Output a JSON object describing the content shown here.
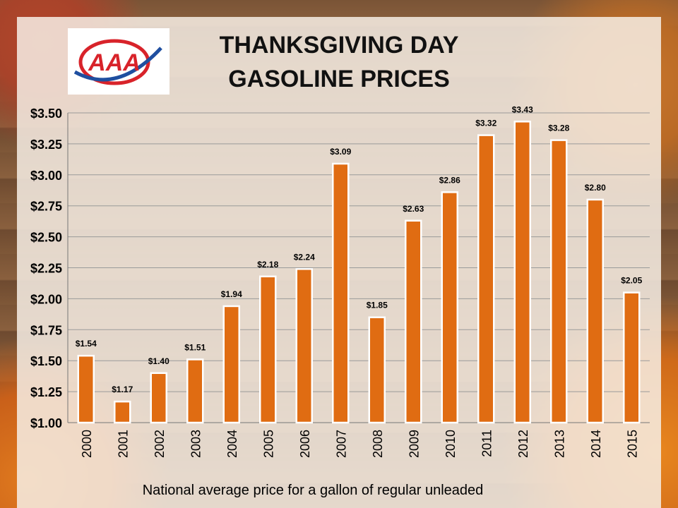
{
  "header": {
    "title_line1": "THANKSGIVING DAY",
    "title_line2": "GASOLINE PRICES",
    "logo_text": "AAA"
  },
  "footer": {
    "caption": "National average price for a gallon of regular unleaded"
  },
  "colors": {
    "bar_fill": "#e06c12",
    "bar_stroke": "#ffffff",
    "grid": "#9a9a9a",
    "logo_red": "#d8232a",
    "logo_blue": "#1f4fa0"
  },
  "chart_data": {
    "type": "bar",
    "categories": [
      "2000",
      "2001",
      "2002",
      "2003",
      "2004",
      "2005",
      "2006",
      "2007",
      "2008",
      "2009",
      "2010",
      "2011",
      "2012",
      "2013",
      "2014",
      "2015"
    ],
    "values": [
      1.54,
      1.17,
      1.4,
      1.51,
      1.94,
      2.18,
      2.24,
      3.09,
      1.85,
      2.63,
      2.86,
      3.32,
      3.43,
      3.28,
      2.8,
      2.05
    ],
    "data_labels": [
      "$1.54",
      "$1.17",
      "$1.40",
      "$1.51",
      "$1.94",
      "$2.18",
      "$2.24",
      "$3.09",
      "$1.85",
      "$2.63",
      "$2.86",
      "$3.32",
      "$3.43",
      "$3.28",
      "$2.80",
      "$2.05"
    ],
    "ylim": [
      1.0,
      3.5
    ],
    "yticks": [
      1.0,
      1.25,
      1.5,
      1.75,
      2.0,
      2.25,
      2.5,
      2.75,
      3.0,
      3.25,
      3.5
    ],
    "ytick_labels": [
      "$1.00",
      "$1.25",
      "$1.50",
      "$1.75",
      "$2.00",
      "$2.25",
      "$2.50",
      "$2.75",
      "$3.00",
      "$3.25",
      "$3.50"
    ],
    "grid": true,
    "title": "",
    "xlabel": "",
    "ylabel": ""
  }
}
